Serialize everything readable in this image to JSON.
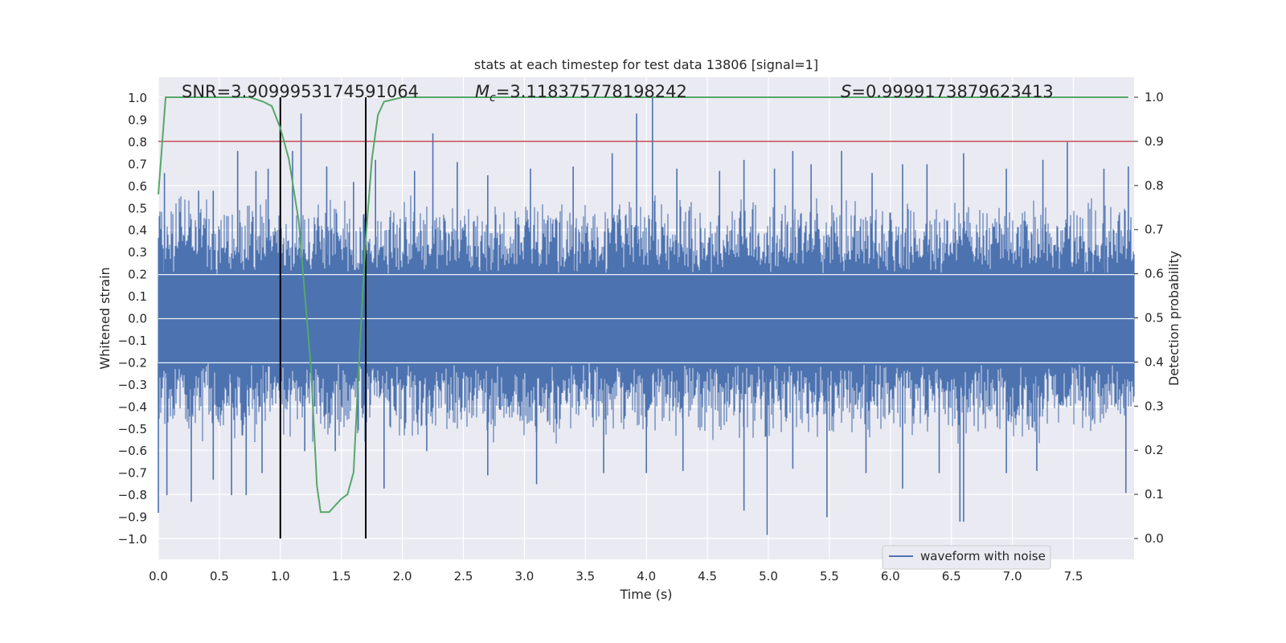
{
  "chart_data": {
    "type": "line",
    "title": "stats at each timestep for test data 13806 [signal=1]",
    "xlabel": "Time (s)",
    "ylabel": "Whitened strain",
    "y2label": "Detection probability",
    "xlim": [
      0.0,
      8.0
    ],
    "ylim": [
      -1.1,
      1.1
    ],
    "y2lim": [
      -0.05,
      1.05
    ],
    "xticks": [
      "0.0",
      "0.5",
      "1.0",
      "1.5",
      "2.0",
      "2.5",
      "3.0",
      "3.5",
      "4.0",
      "4.5",
      "5.0",
      "5.5",
      "6.0",
      "6.5",
      "7.0",
      "7.5"
    ],
    "yticks": [
      "1.0",
      "0.9",
      "0.8",
      "0.7",
      "0.6",
      "0.5",
      "0.4",
      "0.3",
      "0.2",
      "0.1",
      "0.0",
      "−0.1",
      "−0.2",
      "−0.3",
      "−0.4",
      "−0.5",
      "−0.6",
      "−0.7",
      "−0.8",
      "−0.9",
      "−1.0"
    ],
    "y2ticks": [
      "1.0",
      "0.9",
      "0.8",
      "0.7",
      "0.6",
      "0.5",
      "0.4",
      "0.3",
      "0.2",
      "0.1",
      "0.0"
    ],
    "grid": true,
    "legend_position": "lower-right",
    "annotations": {
      "snr": "SNR=3.9099953174591064",
      "mc_symbol": "M",
      "mc_sub": "c",
      "mc_value": "=3.118375778198242",
      "s_symbol": "S",
      "s_value": "=0.9999173879623413"
    },
    "threshold": {
      "value": 0.9,
      "axis": "right",
      "color": "#c44e52"
    },
    "vlines": [
      1.0,
      1.7
    ],
    "series": [
      {
        "name": "waveform with noise",
        "axis": "left",
        "color": "#4c72b0",
        "envelope": "dense noise, core amplitude ~±0.2 to ±0.4 with spikes",
        "spikes_top": [
          [
            0.05,
            0.66
          ],
          [
            0.33,
            0.58
          ],
          [
            0.45,
            0.58
          ],
          [
            0.65,
            0.76
          ],
          [
            0.8,
            0.67
          ],
          [
            0.9,
            0.68
          ],
          [
            1.1,
            0.76
          ],
          [
            1.17,
            0.93
          ],
          [
            1.38,
            0.69
          ],
          [
            1.6,
            0.62
          ],
          [
            1.78,
            0.72
          ],
          [
            2.1,
            0.67
          ],
          [
            2.25,
            0.84
          ],
          [
            2.45,
            0.71
          ],
          [
            2.7,
            0.65
          ],
          [
            3.05,
            0.68
          ],
          [
            3.4,
            0.69
          ],
          [
            3.72,
            0.75
          ],
          [
            3.92,
            0.93
          ],
          [
            4.05,
            1.0
          ],
          [
            4.25,
            0.68
          ],
          [
            4.6,
            0.67
          ],
          [
            4.8,
            0.72
          ],
          [
            5.05,
            0.68
          ],
          [
            5.2,
            0.76
          ],
          [
            5.35,
            0.7
          ],
          [
            5.6,
            0.76
          ],
          [
            5.85,
            0.66
          ],
          [
            6.1,
            0.7
          ],
          [
            6.3,
            0.7
          ],
          [
            6.6,
            0.75
          ],
          [
            6.95,
            0.68
          ],
          [
            7.25,
            0.72
          ],
          [
            7.45,
            0.8
          ],
          [
            7.75,
            0.68
          ],
          [
            7.95,
            0.69
          ]
        ],
        "spikes_bottom": [
          [
            0.0,
            -0.88
          ],
          [
            0.07,
            -0.8
          ],
          [
            0.27,
            -0.83
          ],
          [
            0.45,
            -0.73
          ],
          [
            0.6,
            -0.8
          ],
          [
            0.72,
            -0.8
          ],
          [
            0.85,
            -0.7
          ],
          [
            1.0,
            -0.45
          ],
          [
            1.2,
            -0.6
          ],
          [
            1.45,
            -0.6
          ],
          [
            1.85,
            -0.77
          ],
          [
            2.2,
            -0.6
          ],
          [
            2.7,
            -0.71
          ],
          [
            3.1,
            -0.75
          ],
          [
            3.65,
            -0.7
          ],
          [
            4.0,
            -0.7
          ],
          [
            4.3,
            -0.69
          ],
          [
            4.8,
            -0.87
          ],
          [
            4.99,
            -0.98
          ],
          [
            5.2,
            -0.68
          ],
          [
            5.48,
            -0.9
          ],
          [
            5.8,
            -0.7
          ],
          [
            6.1,
            -0.77
          ],
          [
            6.4,
            -0.7
          ],
          [
            6.57,
            -0.92
          ],
          [
            6.6,
            -0.92
          ],
          [
            6.95,
            -0.7
          ],
          [
            7.2,
            -0.69
          ],
          [
            7.93,
            -0.79
          ]
        ]
      },
      {
        "name": "",
        "axis": "right",
        "color": "#55a868",
        "x": [
          0.0,
          0.06,
          0.15,
          0.5,
          0.75,
          0.86,
          0.93,
          1.0,
          1.07,
          1.15,
          1.25,
          1.3,
          1.33,
          1.4,
          1.5,
          1.55,
          1.6,
          1.65,
          1.7,
          1.75,
          1.8,
          1.85,
          2.0,
          3.0,
          4.0,
          5.0,
          6.0,
          7.0,
          7.95
        ],
        "y": [
          0.78,
          1.0,
          1.0,
          1.0,
          1.0,
          0.99,
          0.98,
          0.93,
          0.86,
          0.72,
          0.39,
          0.12,
          0.06,
          0.06,
          0.09,
          0.1,
          0.15,
          0.43,
          0.68,
          0.86,
          0.96,
          0.99,
          1.0,
          1.0,
          1.0,
          1.0,
          1.0,
          1.0,
          1.0
        ]
      }
    ]
  }
}
